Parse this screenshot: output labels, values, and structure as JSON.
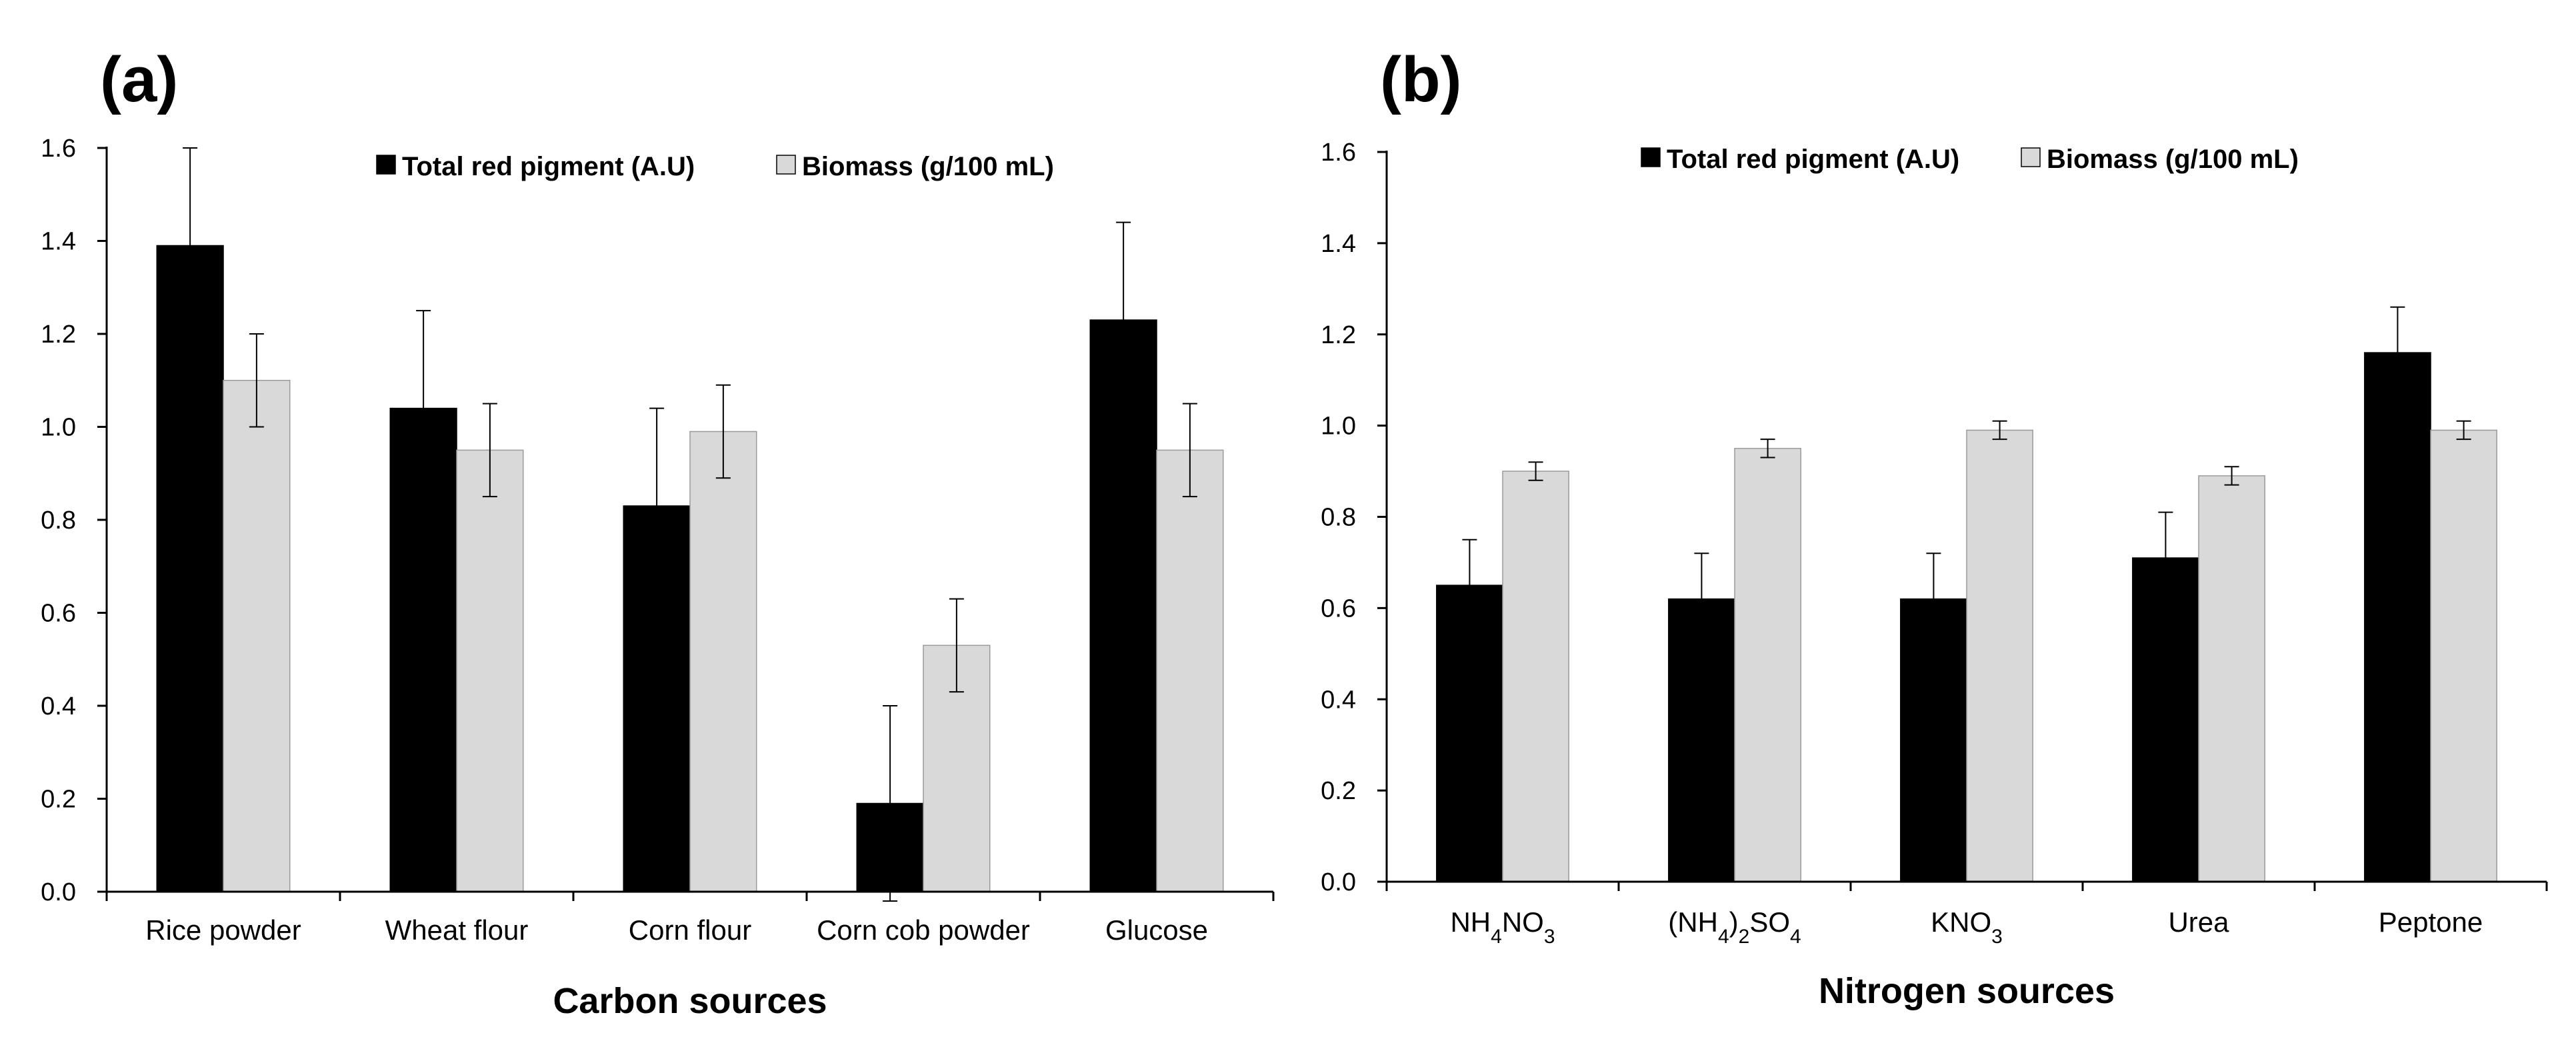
{
  "colors": {
    "pigment": "#000000",
    "biomass": "#d9d9d9",
    "axis": "#000000"
  },
  "chart_data": [
    {
      "type": "bar",
      "panel_label": "(a)",
      "xlabel": "Carbon sources",
      "ylabel": "",
      "ylim": [
        0,
        1.6
      ],
      "yticks": [
        "0.0",
        "0.2",
        "0.4",
        "0.6",
        "0.8",
        "1.0",
        "1.2",
        "1.4",
        "1.6"
      ],
      "grid": false,
      "legend_position": "top",
      "categories": [
        {
          "text": "Rice powder"
        },
        {
          "text": "Wheat flour"
        },
        {
          "text": "Corn flour"
        },
        {
          "text": "Corn cob powder"
        },
        {
          "text": "Glucose"
        }
      ],
      "series": [
        {
          "name": "Total red pigment (A.U)",
          "values": [
            1.39,
            1.04,
            0.83,
            0.19,
            1.23
          ],
          "errors": [
            0.21,
            0.21,
            0.21,
            0.21,
            0.21
          ]
        },
        {
          "name": "Biomass (g/100 mL)",
          "values": [
            1.1,
            0.95,
            0.99,
            0.53,
            0.95
          ],
          "errors": [
            0.1,
            0.1,
            0.1,
            0.1,
            0.1
          ]
        }
      ]
    },
    {
      "type": "bar",
      "panel_label": "(b)",
      "xlabel": "Nitrogen sources",
      "ylabel": "",
      "ylim": [
        0,
        1.6
      ],
      "yticks": [
        "0.0",
        "0.2",
        "0.4",
        "0.6",
        "0.8",
        "1.0",
        "1.2",
        "1.4",
        "1.6"
      ],
      "grid": false,
      "legend_position": "top",
      "categories": [
        {
          "text": "NH4NO3",
          "parts": [
            [
              "NH",
              ""
            ],
            [
              "4",
              "sub"
            ],
            [
              "NO",
              ""
            ],
            [
              "3",
              "sub"
            ]
          ]
        },
        {
          "text": "(NH4)2SO4",
          "parts": [
            [
              "(NH",
              ""
            ],
            [
              "4",
              "sub"
            ],
            [
              ")",
              ""
            ],
            [
              "2",
              "sub"
            ],
            [
              "SO",
              ""
            ],
            [
              "4",
              "sub"
            ]
          ]
        },
        {
          "text": "KNO3",
          "parts": [
            [
              "KNO",
              ""
            ],
            [
              "3",
              "sub"
            ]
          ]
        },
        {
          "text": "Urea"
        },
        {
          "text": "Peptone"
        }
      ],
      "series": [
        {
          "name": "Total red pigment (A.U)",
          "values": [
            0.65,
            0.62,
            0.62,
            0.71,
            1.16
          ],
          "errors": [
            0.1,
            0.1,
            0.1,
            0.1,
            0.1
          ]
        },
        {
          "name": "Biomass (g/100 mL)",
          "values": [
            0.9,
            0.95,
            0.99,
            0.89,
            0.99
          ],
          "errors": [
            0.02,
            0.02,
            0.02,
            0.02,
            0.02
          ]
        }
      ]
    }
  ]
}
